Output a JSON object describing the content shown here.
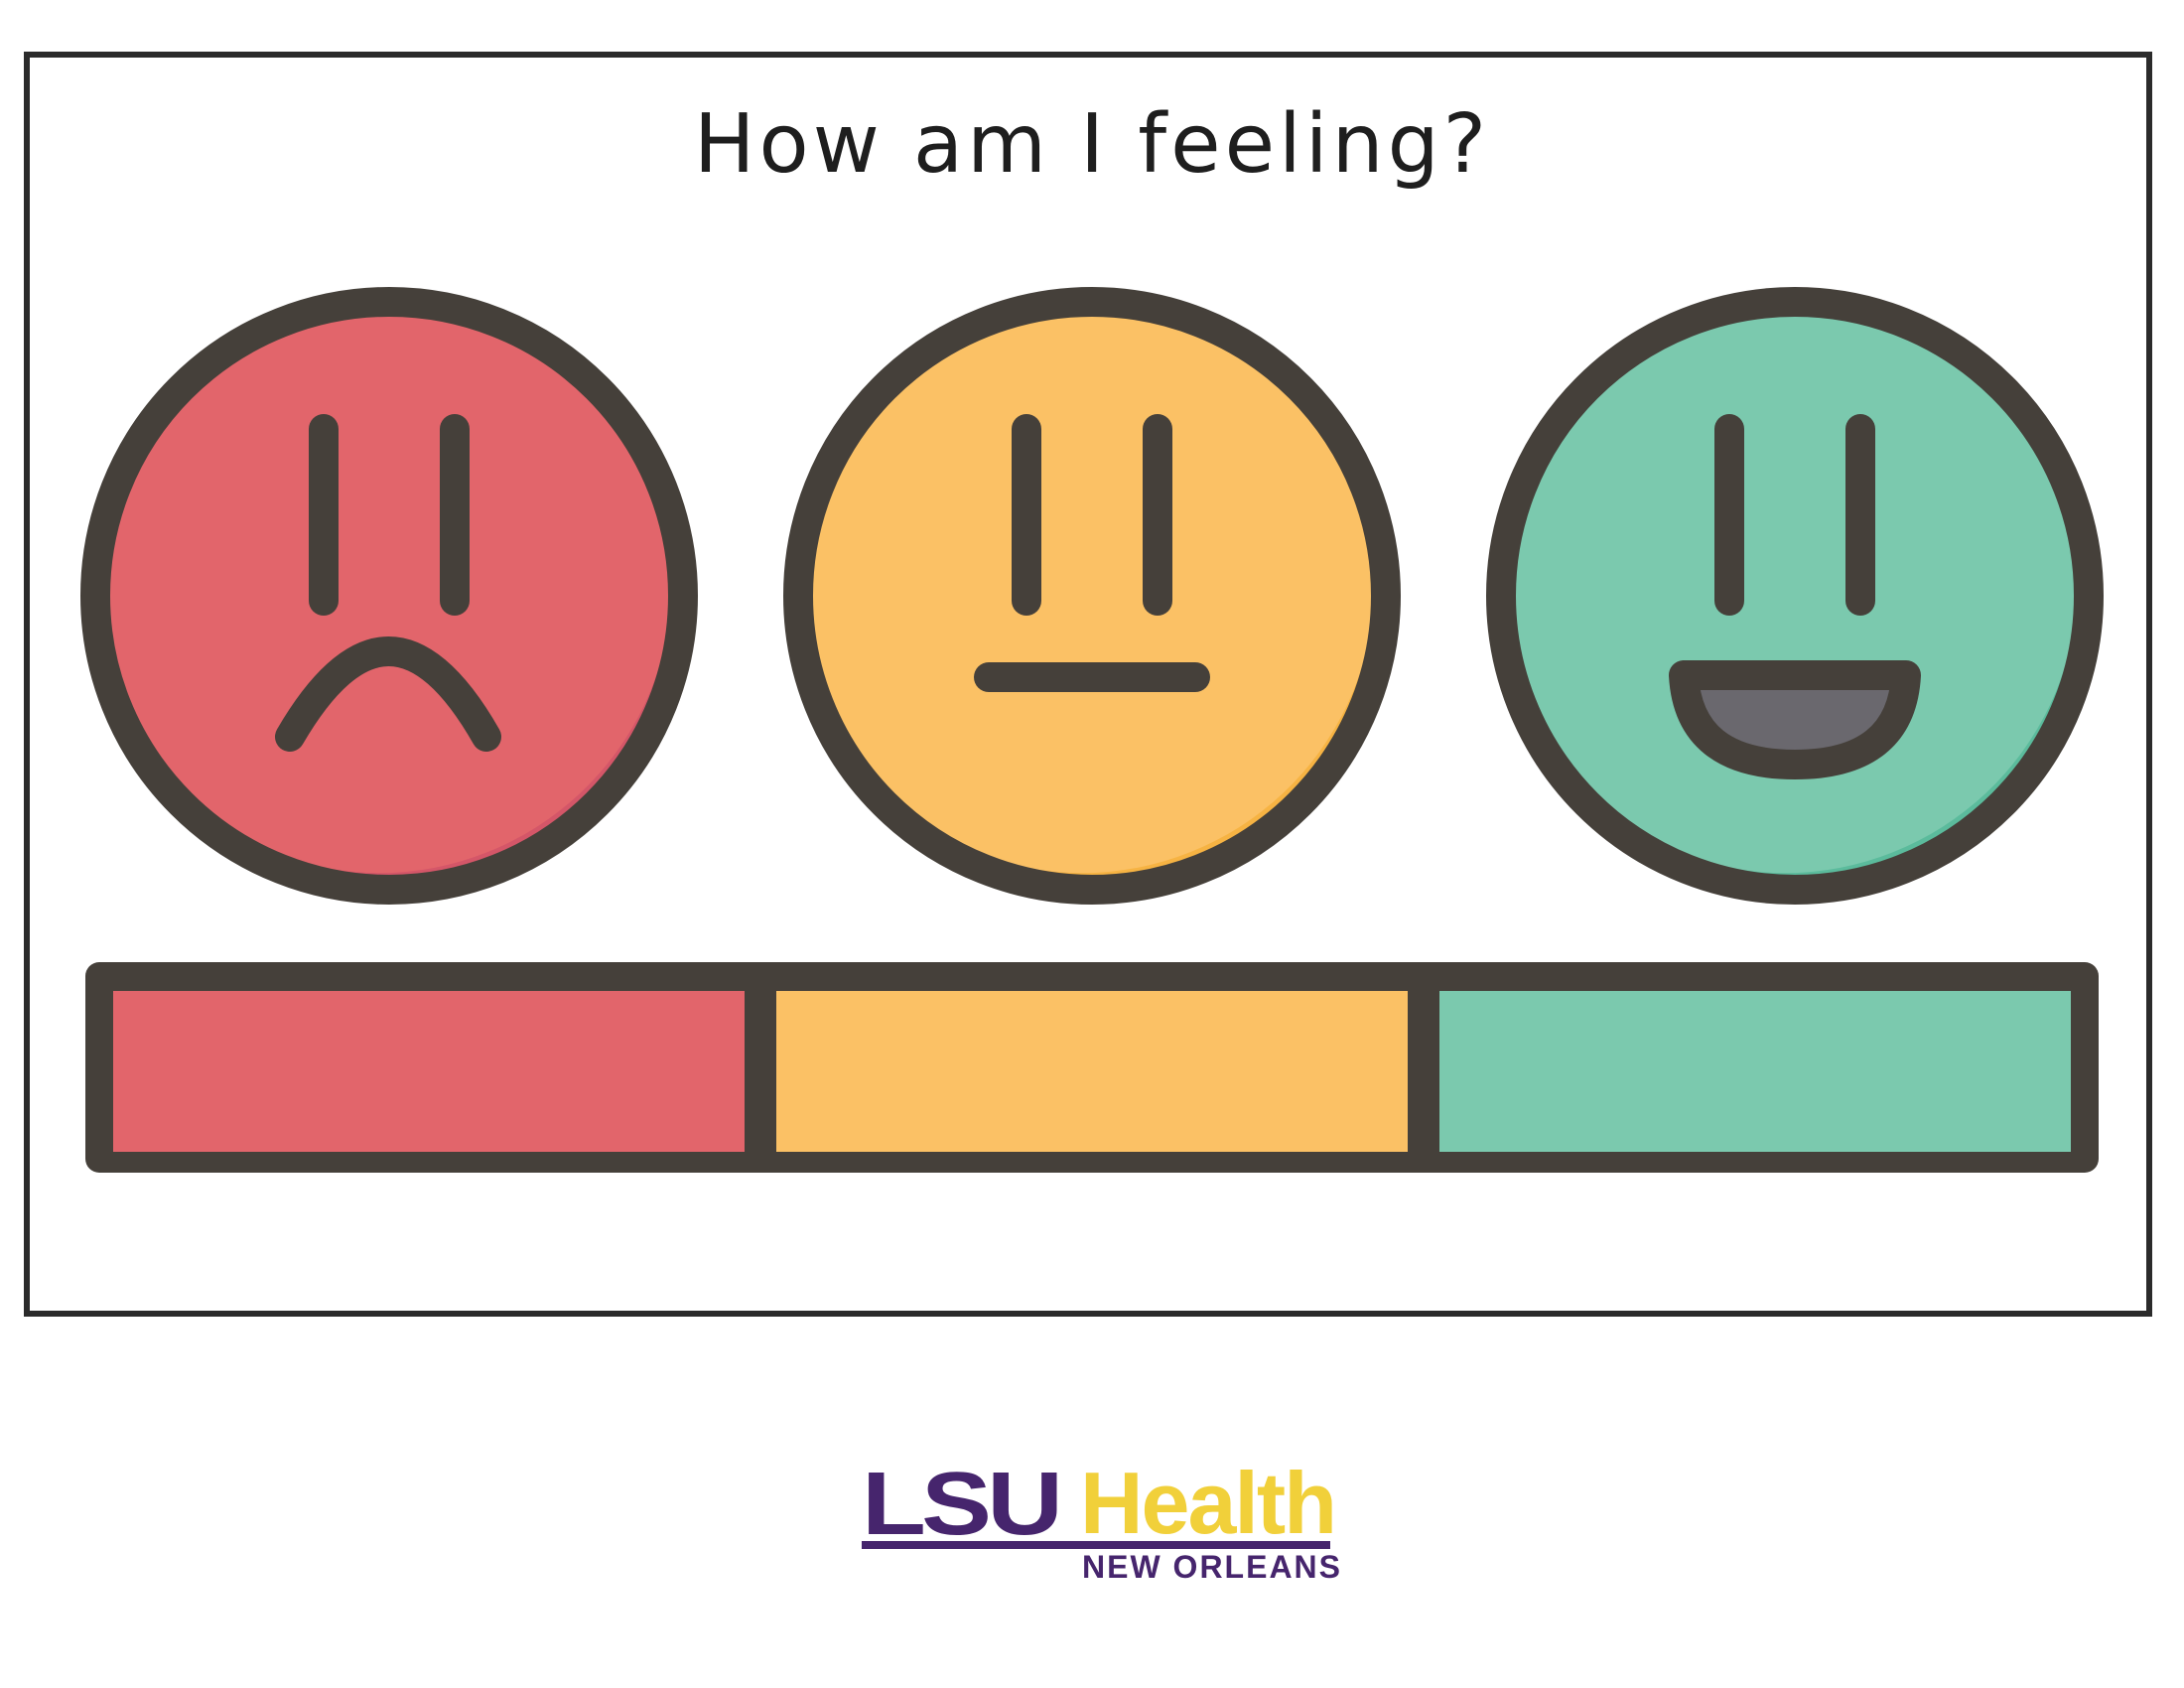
{
  "title": "How am I feeling?",
  "faces": [
    {
      "mood": "sad",
      "color": "#e2656b",
      "shade": "#d45668",
      "icon": "sad-face-icon"
    },
    {
      "mood": "neutral",
      "color": "#fbc165",
      "shade": "#f6b343",
      "icon": "neutral-face-icon"
    },
    {
      "mood": "happy",
      "color": "#7bc9ae",
      "shade": "#5bbb9c",
      "icon": "happy-face-icon"
    }
  ],
  "scale_segments": [
    {
      "color": "#e2656b"
    },
    {
      "color": "#fbc165"
    },
    {
      "color": "#7bc9ae"
    }
  ],
  "outline_color": "#45403a",
  "logo": {
    "lsu": "LSU",
    "health": "Health",
    "location": "NEW ORLEANS",
    "purple": "#46256d",
    "gold": "#f1d03a"
  }
}
